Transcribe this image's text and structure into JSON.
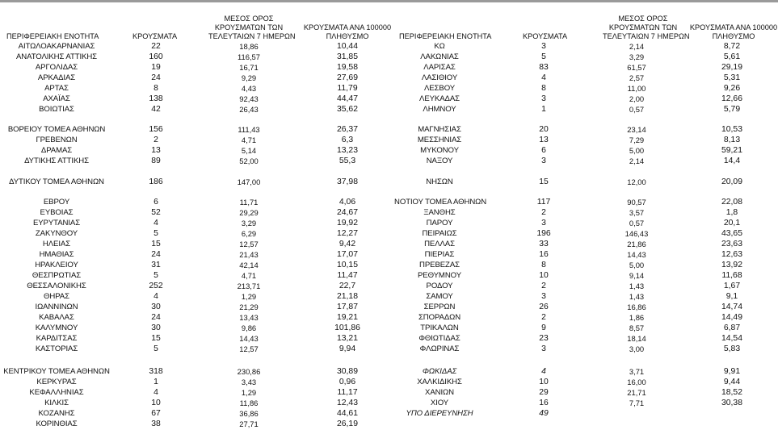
{
  "headers": {
    "region": "ΠΕΡΙΦΕΡΕΙΑΚΗ ΕΝΟΤΗΤΑ",
    "cases": "ΚΡΟΥΣΜΑΤΑ",
    "avg_line1": "ΜΕΣΟΣ ΟΡΟΣ",
    "avg_line2": "ΚΡΟΥΣΜΑΤΩΝ ΤΩΝ",
    "avg_line3": "ΤΕΛΕΥΤΑΙΩΝ 7 ΗΜΕΡΩΝ",
    "per100k_line1": "ΚΡΟΥΣΜΑΤΑ ΑΝΑ 100000",
    "per100k_line2": "ΠΛΗΘΥΣΜΟ"
  },
  "left_rows": [
    {
      "name": "ΑΙΤΩΛΟΑΚΑΡΝΑΝΙΑΣ",
      "cases": "22",
      "avg": "18,86",
      "per100k": "10,44"
    },
    {
      "name": "ΑΝΑΤΟΛΙΚΗΣ ΑΤΤΙΚΗΣ",
      "cases": "160",
      "avg": "116,57",
      "per100k": "31,85"
    },
    {
      "name": "ΑΡΓΟΛΙΔΑΣ",
      "cases": "19",
      "avg": "16,71",
      "per100k": "19,58"
    },
    {
      "name": "ΑΡΚΑΔΙΑΣ",
      "cases": "24",
      "avg": "9,29",
      "per100k": "27,69"
    },
    {
      "name": "ΑΡΤΑΣ",
      "cases": "8",
      "avg": "4,43",
      "per100k": "11,79"
    },
    {
      "name": "ΑΧΑΪΑΣ",
      "cases": "138",
      "avg": "92,43",
      "per100k": "44,47"
    },
    {
      "name": "ΒΟΙΩΤΙΑΣ",
      "cases": "42",
      "avg": "26,43",
      "per100k": "35,62"
    },
    {
      "name": "ΒΟΡΕΙΟΥ ΤΟΜΕΑ ΑΘΗΝΩΝ",
      "cases": "156",
      "avg": "111,43",
      "per100k": "26,37"
    },
    {
      "name": "ΓΡΕΒΕΝΩΝ",
      "cases": "2",
      "avg": "4,71",
      "per100k": "6,3"
    },
    {
      "name": "ΔΡΑΜΑΣ",
      "cases": "13",
      "avg": "5,14",
      "per100k": "13,23"
    },
    {
      "name": "ΔΥΤΙΚΗΣ ΑΤΤΙΚΗΣ",
      "cases": "89",
      "avg": "52,00",
      "per100k": "55,3"
    },
    {
      "name": "ΔΥΤΙΚΟΥ ΤΟΜΕΑ ΑΘΗΝΩΝ",
      "cases": "186",
      "avg": "147,00",
      "per100k": "37,98"
    },
    {
      "name": "ΕΒΡΟΥ",
      "cases": "6",
      "avg": "11,71",
      "per100k": "4,06"
    },
    {
      "name": "ΕΥΒΟΙΑΣ",
      "cases": "52",
      "avg": "29,29",
      "per100k": "24,67"
    },
    {
      "name": "ΕΥΡΥΤΑΝΙΑΣ",
      "cases": "4",
      "avg": "3,29",
      "per100k": "19,92"
    },
    {
      "name": "ΖΑΚΥΝΘΟΥ",
      "cases": "5",
      "avg": "6,29",
      "per100k": "12,27"
    },
    {
      "name": "ΗΛΕΙΑΣ",
      "cases": "15",
      "avg": "12,57",
      "per100k": "9,42"
    },
    {
      "name": "ΗΜΑΘΙΑΣ",
      "cases": "24",
      "avg": "21,43",
      "per100k": "17,07"
    },
    {
      "name": "ΗΡΑΚΛΕΙΟΥ",
      "cases": "31",
      "avg": "42,14",
      "per100k": "10,15"
    },
    {
      "name": "ΘΕΣΠΡΩΤΙΑΣ",
      "cases": "5",
      "avg": "4,71",
      "per100k": "11,47"
    },
    {
      "name": "ΘΕΣΣΑΛΟΝΙΚΗΣ",
      "cases": "252",
      "avg": "213,71",
      "per100k": "22,7"
    },
    {
      "name": "ΘΗΡΑΣ",
      "cases": "4",
      "avg": "1,29",
      "per100k": "21,18"
    },
    {
      "name": "ΙΩΑΝΝΙΝΩΝ",
      "cases": "30",
      "avg": "21,29",
      "per100k": "17,87"
    },
    {
      "name": "ΚΑΒΑΛΑΣ",
      "cases": "24",
      "avg": "13,43",
      "per100k": "19,21"
    },
    {
      "name": "ΚΑΛΥΜΝΟΥ",
      "cases": "30",
      "avg": "9,86",
      "per100k": "101,86"
    },
    {
      "name": "ΚΑΡΔΙΤΣΑΣ",
      "cases": "15",
      "avg": "14,43",
      "per100k": "13,21"
    },
    {
      "name": "ΚΑΣΤΟΡΙΑΣ",
      "cases": "5",
      "avg": "12,57",
      "per100k": "9,94"
    },
    {
      "name": "ΚΕΝΤΡΙΚΟΥ ΤΟΜΕΑ ΑΘΗΝΩΝ",
      "cases": "318",
      "avg": "230,86",
      "per100k": "30,89"
    },
    {
      "name": "ΚΕΡΚΥΡΑΣ",
      "cases": "1",
      "avg": "3,43",
      "per100k": "0,96"
    },
    {
      "name": "ΚΕΦΑΛΛΗΝΙΑΣ",
      "cases": "4",
      "avg": "1,29",
      "per100k": "11,17"
    },
    {
      "name": "ΚΙΛΚΙΣ",
      "cases": "10",
      "avg": "11,86",
      "per100k": "12,43"
    },
    {
      "name": "ΚΟΖΑΝΗΣ",
      "cases": "67",
      "avg": "36,86",
      "per100k": "44,61"
    },
    {
      "name": "ΚΟΡΙΝΘΙΑΣ",
      "cases": "38",
      "avg": "27,71",
      "per100k": "26,19"
    }
  ],
  "right_rows": [
    {
      "name": "ΚΩ",
      "cases": "3",
      "avg": "2,14",
      "per100k": "8,72"
    },
    {
      "name": "ΛΑΚΩΝΙΑΣ",
      "cases": "5",
      "avg": "3,29",
      "per100k": "5,61"
    },
    {
      "name": "ΛΑΡΙΣΑΣ",
      "cases": "83",
      "avg": "61,57",
      "per100k": "29,19"
    },
    {
      "name": "ΛΑΣΙΘΙΟΥ",
      "cases": "4",
      "avg": "2,57",
      "per100k": "5,31"
    },
    {
      "name": "ΛΕΣΒΟΥ",
      "cases": "8",
      "avg": "11,00",
      "per100k": "9,26"
    },
    {
      "name": "ΛΕΥΚΑΔΑΣ",
      "cases": "3",
      "avg": "2,00",
      "per100k": "12,66"
    },
    {
      "name": "ΛΗΜΝΟΥ",
      "cases": "1",
      "avg": "0,57",
      "per100k": "5,79"
    },
    {
      "name": "ΜΑΓΝΗΣΙΑΣ",
      "cases": "20",
      "avg": "23,14",
      "per100k": "10,53"
    },
    {
      "name": "ΜΕΣΣΗΝΙΑΣ",
      "cases": "13",
      "avg": "7,29",
      "per100k": "8,13"
    },
    {
      "name": "ΜΥΚΟΝΟΥ",
      "cases": "6",
      "avg": "5,00",
      "per100k": "59,21"
    },
    {
      "name": "ΝΑΞΟΥ",
      "cases": "3",
      "avg": "2,14",
      "per100k": "14,4"
    },
    {
      "name": "ΝΗΣΩΝ",
      "cases": "15",
      "avg": "12,00",
      "per100k": "20,09"
    },
    {
      "name": "ΝΟΤΙΟΥ ΤΟΜΕΑ ΑΘΗΝΩΝ",
      "cases": "117",
      "avg": "90,57",
      "per100k": "22,08"
    },
    {
      "name": "ΞΑΝΘΗΣ",
      "cases": "2",
      "avg": "3,57",
      "per100k": "1,8"
    },
    {
      "name": "ΠΑΡΟΥ",
      "cases": "3",
      "avg": "0,57",
      "per100k": "20,1"
    },
    {
      "name": "ΠΕΙΡΑΙΩΣ",
      "cases": "196",
      "avg": "146,43",
      "per100k": "43,65"
    },
    {
      "name": "ΠΕΛΛΑΣ",
      "cases": "33",
      "avg": "21,86",
      "per100k": "23,63"
    },
    {
      "name": "ΠΙΕΡΙΑΣ",
      "cases": "16",
      "avg": "14,43",
      "per100k": "12,63"
    },
    {
      "name": "ΠΡΕΒΕΖΑΣ",
      "cases": "8",
      "avg": "5,00",
      "per100k": "13,92"
    },
    {
      "name": "ΡΕΘΥΜΝΟΥ",
      "cases": "10",
      "avg": "9,14",
      "per100k": "11,68"
    },
    {
      "name": "ΡΟΔΟΥ",
      "cases": "2",
      "avg": "1,43",
      "per100k": "1,67"
    },
    {
      "name": "ΣΑΜΟΥ",
      "cases": "3",
      "avg": "1,43",
      "per100k": "9,1"
    },
    {
      "name": "ΣΕΡΡΩΝ",
      "cases": "26",
      "avg": "16,86",
      "per100k": "14,74"
    },
    {
      "name": "ΣΠΟΡΑΔΩΝ",
      "cases": "2",
      "avg": "1,86",
      "per100k": "14,49"
    },
    {
      "name": "ΤΡΙΚΑΛΩΝ",
      "cases": "9",
      "avg": "8,57",
      "per100k": "6,87"
    },
    {
      "name": "ΦΘΙΩΤΙΔΑΣ",
      "cases": "23",
      "avg": "18,14",
      "per100k": "14,54"
    },
    {
      "name": "ΦΛΩΡΙΝΑΣ",
      "cases": "3",
      "avg": "3,00",
      "per100k": "5,83"
    },
    {
      "name": "ΦΩΚΙΔΑΣ",
      "cases": "4",
      "avg": "3,71",
      "per100k": "9,91"
    },
    {
      "name": "ΧΑΛΚΙΔΙΚΗΣ",
      "cases": "10",
      "avg": "16,00",
      "per100k": "9,44"
    },
    {
      "name": "ΧΑΝΙΩΝ",
      "cases": "29",
      "avg": "21,71",
      "per100k": "18,52"
    },
    {
      "name": "ΧΙΟΥ",
      "cases": "16",
      "avg": "7,71",
      "per100k": "30,38"
    },
    {
      "name": "ΥΠΟ ΔΙΕΡΕΥΝΗΣΗ",
      "cases": "49",
      "avg": "",
      "per100k": ""
    }
  ]
}
